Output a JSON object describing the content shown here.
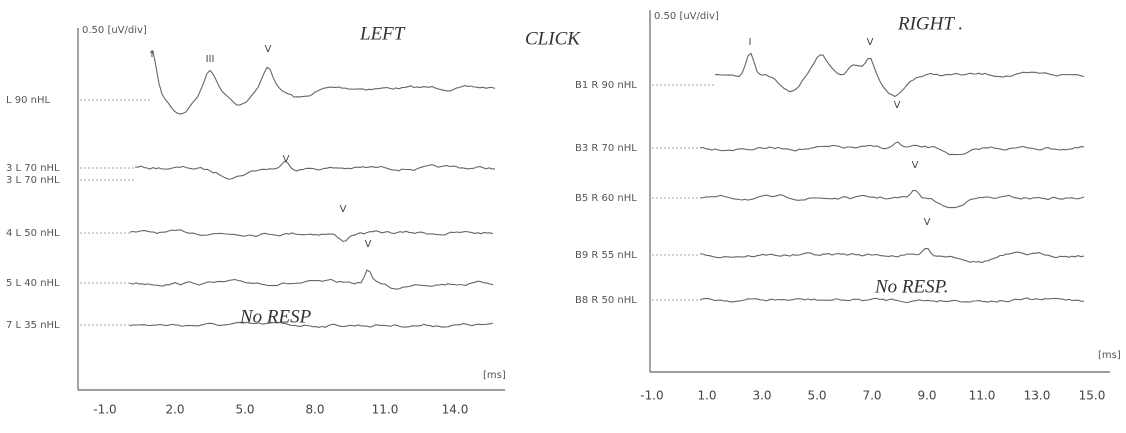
{
  "left_panel": {
    "scale": "0.50 [uV/div]",
    "title": "LEFT",
    "title2": "CLICK",
    "traces": [
      "L 90 nHL",
      "3 L 70 nHL",
      "3 L 70 nHL",
      "4 L 50 nHL",
      "5 L 40 nHL",
      "7 L 35 nHL"
    ],
    "peaks": [
      "I",
      "III",
      "V",
      "V",
      "V",
      "V"
    ],
    "annotation": "No RESP",
    "unit": "[ms]",
    "x_labels": [
      "-1.0",
      "2.0",
      "5.0",
      "8.0",
      "11.0",
      "14.0"
    ]
  },
  "right_panel": {
    "scale": "0.50 [uV/div]",
    "title": "RIGHT .",
    "traces": [
      "B1 R 90 nHL",
      "B3 R 70 nHL",
      "B5 R 60 nHL",
      "B9 R 55 nHL",
      "B8 R 50 nHL"
    ],
    "peaks": [
      "I",
      "V",
      "V",
      "V",
      "V"
    ],
    "annotation": "No RESP.",
    "unit": "[ms]",
    "x_labels": [
      "-1.0",
      "1.0",
      "3.0",
      "5.0",
      "7.0",
      "9.0",
      "11.0",
      "13.0",
      "15.0"
    ]
  }
}
